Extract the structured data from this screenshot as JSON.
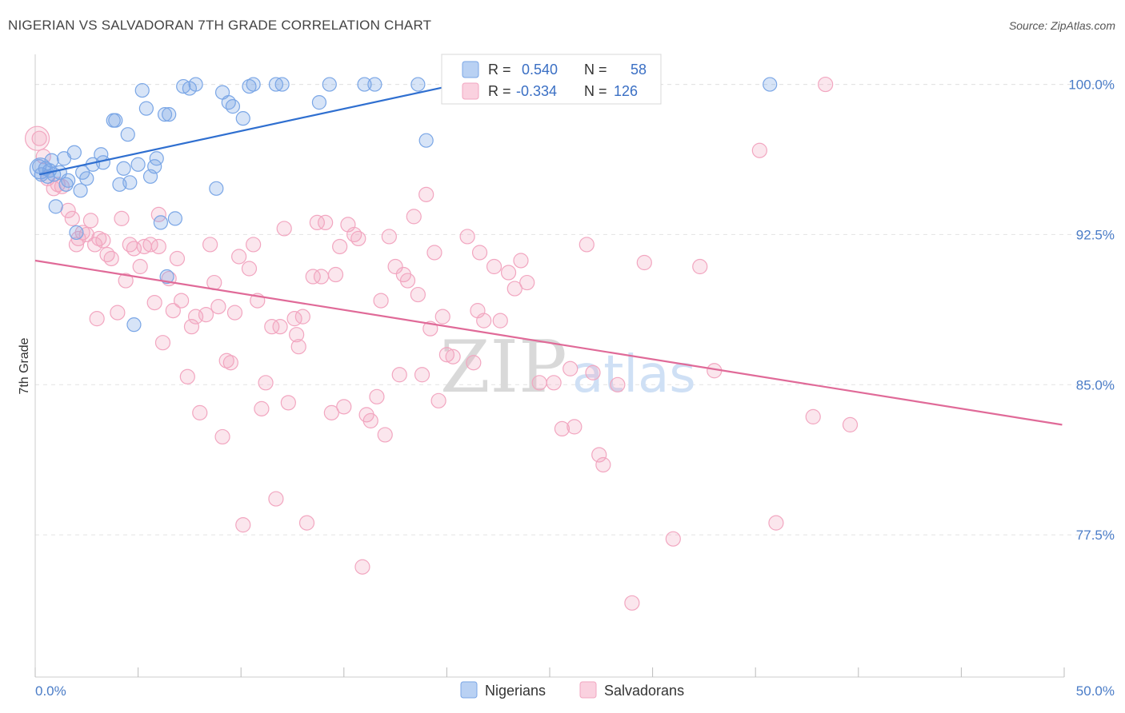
{
  "header": {
    "title": "NIGERIAN VS SALVADORAN 7TH GRADE CORRELATION CHART",
    "source": "Source: ZipAtlas.com"
  },
  "watermark": {
    "part1": "ZIP",
    "part2": "atlas"
  },
  "legend": {
    "rows": [
      {
        "r_label": "R =",
        "r_value": "0.540",
        "n_label": "N =",
        "n_value": "58",
        "color": "#7aa6e6"
      },
      {
        "r_label": "R =",
        "r_value": "-0.334",
        "n_label": "N =",
        "n_value": "126",
        "color": "#f2a6c0"
      }
    ]
  },
  "bottom_legend": [
    {
      "label": "Nigerians",
      "color": "#7aa6e6"
    },
    {
      "label": "Salvadorans",
      "color": "#f2a6c0"
    }
  ],
  "chart_data": {
    "type": "scatter",
    "title": "NIGERIAN VS SALVADORAN 7TH GRADE CORRELATION CHART",
    "xlabel": "",
    "ylabel": "7th Grade",
    "xlim": [
      0,
      50
    ],
    "ylim": [
      70.4,
      101.5
    ],
    "x_tick_labels": [
      "0.0%",
      "50.0%"
    ],
    "y_ticks": [
      100.0,
      92.5,
      85.0,
      77.5
    ],
    "y_tick_labels": [
      "100.0%",
      "92.5%",
      "85.0%",
      "77.5%"
    ],
    "grid": true,
    "legend_placement": "top-center",
    "series": [
      {
        "name": "Nigerians",
        "color": "#7aa6e6",
        "line_color": "#2f6fd0",
        "trend": {
          "x": [
            0.2,
            20.5
          ],
          "y": [
            95.5,
            100.0
          ]
        },
        "points": [
          [
            0.2,
            95.9
          ],
          [
            0.3,
            95.5
          ],
          [
            0.5,
            95.8
          ],
          [
            0.6,
            95.4
          ],
          [
            0.7,
            95.7
          ],
          [
            0.8,
            96.2
          ],
          [
            1.0,
            93.9
          ],
          [
            1.2,
            95.6
          ],
          [
            1.4,
            96.3
          ],
          [
            1.6,
            95.2
          ],
          [
            1.9,
            96.6
          ],
          [
            2.2,
            94.7
          ],
          [
            2.3,
            95.6
          ],
          [
            2.5,
            95.3
          ],
          [
            2.8,
            96.0
          ],
          [
            3.2,
            96.5
          ],
          [
            3.3,
            96.1
          ],
          [
            3.8,
            98.2
          ],
          [
            3.9,
            98.2
          ],
          [
            4.1,
            95.0
          ],
          [
            4.3,
            95.8
          ],
          [
            4.5,
            97.5
          ],
          [
            4.6,
            95.1
          ],
          [
            5.0,
            96.0
          ],
          [
            5.2,
            99.7
          ],
          [
            5.4,
            98.8
          ],
          [
            5.6,
            95.4
          ],
          [
            5.8,
            95.9
          ],
          [
            5.9,
            96.3
          ],
          [
            6.1,
            93.1
          ],
          [
            6.3,
            98.5
          ],
          [
            6.5,
            98.5
          ],
          [
            6.8,
            93.3
          ],
          [
            7.2,
            99.9
          ],
          [
            7.5,
            99.8
          ],
          [
            7.8,
            100.0
          ],
          [
            9.1,
            99.6
          ],
          [
            9.4,
            99.1
          ],
          [
            9.6,
            98.9
          ],
          [
            10.1,
            98.3
          ],
          [
            10.4,
            99.9
          ],
          [
            10.6,
            100.0
          ],
          [
            11.7,
            100.0
          ],
          [
            12.0,
            100.0
          ],
          [
            13.8,
            99.1
          ],
          [
            14.3,
            100.0
          ],
          [
            16.0,
            100.0
          ],
          [
            16.5,
            100.0
          ],
          [
            18.6,
            100.0
          ],
          [
            19.0,
            97.2
          ],
          [
            24.0,
            100.0
          ],
          [
            35.7,
            100.0
          ],
          [
            2.0,
            92.6
          ],
          [
            4.8,
            88.0
          ],
          [
            8.8,
            94.8
          ],
          [
            6.4,
            90.4
          ],
          [
            0.9,
            95.5
          ],
          [
            1.5,
            95.0
          ]
        ]
      },
      {
        "name": "Salvadorans",
        "color": "#f2a6c0",
        "line_color": "#e06a98",
        "trend": {
          "x": [
            0.0,
            49.9
          ],
          "y": [
            91.2,
            83.0
          ]
        },
        "points": [
          [
            0.2,
            97.3
          ],
          [
            0.4,
            96.4
          ],
          [
            0.6,
            95.3
          ],
          [
            0.9,
            94.8
          ],
          [
            1.1,
            95.0
          ],
          [
            1.3,
            94.9
          ],
          [
            1.6,
            93.7
          ],
          [
            1.8,
            93.3
          ],
          [
            2.1,
            92.3
          ],
          [
            2.3,
            92.6
          ],
          [
            2.5,
            92.5
          ],
          [
            2.7,
            93.2
          ],
          [
            2.9,
            92.0
          ],
          [
            3.1,
            92.3
          ],
          [
            3.3,
            92.2
          ],
          [
            3.5,
            91.5
          ],
          [
            3.7,
            91.3
          ],
          [
            4.0,
            88.6
          ],
          [
            4.2,
            93.3
          ],
          [
            4.4,
            90.2
          ],
          [
            4.6,
            92.0
          ],
          [
            4.8,
            91.8
          ],
          [
            5.1,
            90.9
          ],
          [
            5.3,
            91.9
          ],
          [
            5.6,
            92.0
          ],
          [
            5.8,
            89.1
          ],
          [
            6.0,
            93.5
          ],
          [
            6.2,
            87.1
          ],
          [
            6.5,
            90.3
          ],
          [
            6.7,
            88.7
          ],
          [
            6.9,
            91.3
          ],
          [
            7.1,
            89.2
          ],
          [
            7.4,
            85.4
          ],
          [
            7.6,
            87.9
          ],
          [
            7.8,
            88.4
          ],
          [
            8.0,
            83.6
          ],
          [
            8.3,
            88.5
          ],
          [
            8.5,
            92.0
          ],
          [
            8.7,
            90.1
          ],
          [
            8.9,
            88.9
          ],
          [
            9.1,
            82.4
          ],
          [
            9.3,
            86.2
          ],
          [
            9.5,
            86.1
          ],
          [
            9.7,
            88.6
          ],
          [
            9.9,
            91.4
          ],
          [
            10.1,
            78.0
          ],
          [
            10.4,
            90.8
          ],
          [
            10.6,
            92.0
          ],
          [
            10.8,
            89.2
          ],
          [
            11.0,
            83.8
          ],
          [
            11.2,
            85.1
          ],
          [
            11.5,
            87.9
          ],
          [
            11.7,
            79.3
          ],
          [
            11.9,
            87.9
          ],
          [
            12.1,
            92.8
          ],
          [
            12.3,
            84.1
          ],
          [
            12.6,
            88.3
          ],
          [
            12.8,
            86.9
          ],
          [
            13.0,
            88.4
          ],
          [
            13.2,
            78.1
          ],
          [
            13.5,
            90.4
          ],
          [
            13.7,
            93.1
          ],
          [
            13.9,
            90.4
          ],
          [
            14.1,
            93.1
          ],
          [
            14.4,
            83.6
          ],
          [
            14.6,
            90.5
          ],
          [
            14.8,
            91.9
          ],
          [
            15.0,
            83.9
          ],
          [
            15.2,
            93.0
          ],
          [
            15.5,
            92.5
          ],
          [
            15.7,
            92.3
          ],
          [
            15.9,
            75.9
          ],
          [
            16.1,
            83.5
          ],
          [
            16.3,
            83.2
          ],
          [
            16.6,
            84.4
          ],
          [
            16.8,
            89.2
          ],
          [
            17.0,
            82.5
          ],
          [
            17.2,
            92.4
          ],
          [
            17.5,
            90.9
          ],
          [
            17.7,
            85.5
          ],
          [
            17.9,
            90.5
          ],
          [
            18.1,
            90.2
          ],
          [
            18.4,
            93.4
          ],
          [
            18.6,
            89.5
          ],
          [
            18.8,
            85.5
          ],
          [
            19.0,
            94.5
          ],
          [
            19.2,
            87.8
          ],
          [
            19.4,
            91.6
          ],
          [
            19.6,
            84.2
          ],
          [
            19.8,
            88.4
          ],
          [
            20.0,
            86.5
          ],
          [
            20.3,
            86.4
          ],
          [
            21.0,
            92.4
          ],
          [
            21.3,
            86.1
          ],
          [
            21.6,
            91.6
          ],
          [
            21.5,
            88.7
          ],
          [
            22.3,
            90.9
          ],
          [
            22.6,
            88.2
          ],
          [
            23.0,
            90.6
          ],
          [
            23.3,
            89.8
          ],
          [
            23.6,
            91.2
          ],
          [
            23.9,
            90.1
          ],
          [
            24.5,
            85.1
          ],
          [
            25.2,
            85.1
          ],
          [
            25.6,
            82.8
          ],
          [
            26.0,
            85.8
          ],
          [
            26.2,
            82.9
          ],
          [
            27.1,
            85.6
          ],
          [
            27.6,
            81.0
          ],
          [
            27.4,
            81.5
          ],
          [
            28.3,
            85.0
          ],
          [
            29.0,
            74.1
          ],
          [
            29.6,
            91.1
          ],
          [
            31.0,
            77.3
          ],
          [
            32.3,
            90.9
          ],
          [
            33.0,
            85.7
          ],
          [
            35.2,
            96.7
          ],
          [
            36.0,
            78.1
          ],
          [
            37.8,
            83.4
          ],
          [
            38.4,
            100.0
          ],
          [
            39.6,
            83.0
          ],
          [
            26.8,
            92.0
          ],
          [
            12.7,
            87.5
          ],
          [
            3.0,
            88.3
          ],
          [
            2.0,
            92.0
          ],
          [
            6.0,
            91.9
          ],
          [
            21.8,
            88.2
          ]
        ]
      }
    ]
  }
}
